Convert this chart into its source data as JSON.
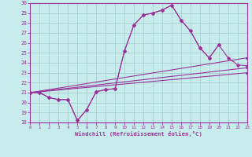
{
  "xlabel": "Windchill (Refroidissement éolien,°C)",
  "xlim": [
    0,
    23
  ],
  "ylim": [
    18,
    30
  ],
  "yticks": [
    18,
    19,
    20,
    21,
    22,
    23,
    24,
    25,
    26,
    27,
    28,
    29,
    30
  ],
  "xticks": [
    0,
    1,
    2,
    3,
    4,
    5,
    6,
    7,
    8,
    9,
    10,
    11,
    12,
    13,
    14,
    15,
    16,
    17,
    18,
    19,
    20,
    21,
    22,
    23
  ],
  "bg_color": "#c8ecec",
  "grid_color": "#a8d0d0",
  "line_color": "#993399",
  "series": [
    {
      "x": [
        0,
        1,
        2,
        3,
        4,
        5,
        6,
        7,
        8,
        9,
        10,
        11,
        12,
        13,
        14,
        15,
        16,
        17,
        18,
        19,
        20
      ],
      "y": [
        21.0,
        21.0,
        20.5,
        20.3,
        20.3,
        18.2,
        19.3,
        21.1,
        21.3,
        21.4,
        25.2,
        27.8,
        28.8,
        29.0,
        29.3,
        29.8,
        28.3,
        27.2,
        25.5,
        24.5,
        25.8
      ]
    },
    {
      "x": [
        0,
        1,
        2,
        3,
        4,
        5,
        6,
        7,
        8,
        9,
        10,
        11,
        12,
        13,
        14,
        15,
        16,
        17,
        18,
        19,
        20,
        21,
        22,
        23
      ],
      "y": [
        21.0,
        21.0,
        20.5,
        20.3,
        20.3,
        18.2,
        19.3,
        21.1,
        21.3,
        21.4,
        25.2,
        27.8,
        28.8,
        29.0,
        29.3,
        29.8,
        28.3,
        27.2,
        25.5,
        24.5,
        25.8,
        24.5,
        23.8,
        23.7
      ]
    },
    {
      "x": [
        0,
        23
      ],
      "y": [
        21.0,
        24.5
      ]
    },
    {
      "x": [
        0,
        23
      ],
      "y": [
        21.0,
        23.5
      ]
    },
    {
      "x": [
        0,
        23
      ],
      "y": [
        21.0,
        23.0
      ]
    }
  ]
}
